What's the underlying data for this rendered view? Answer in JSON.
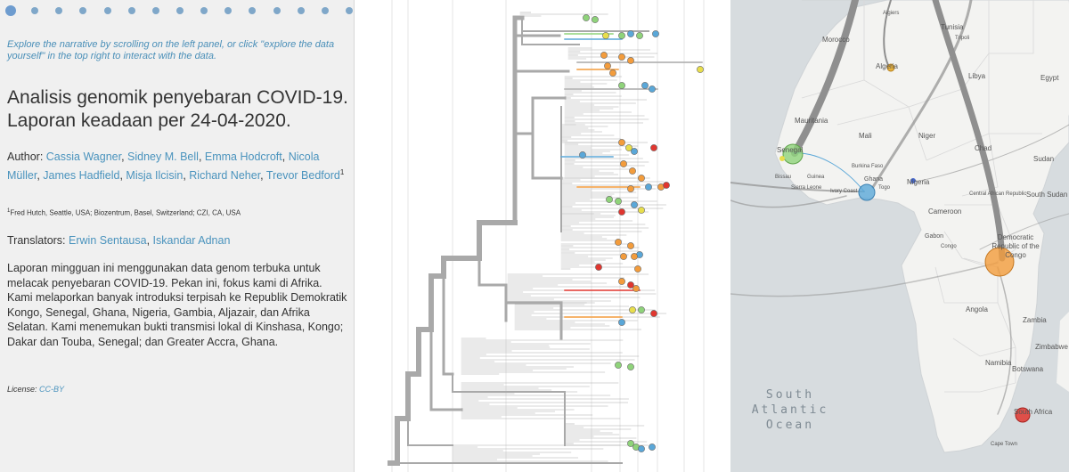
{
  "narrative": {
    "slide_count": 15,
    "active_slide": 0,
    "hint": "Explore the narrative by scrolling on the left panel, or click \"explore the data yourself\" in the top right to interact with the data.",
    "title": "Analisis genomik penyebaran COVID-19. Laporan keadaan per 24-04-2020.",
    "author_label": "Author: ",
    "authors": [
      "Cassia Wagner",
      "Sidney M. Bell",
      "Emma Hodcroft",
      "Nicola Müller",
      "James Hadfield",
      "Misja Ilcisin",
      "Richard Neher",
      "Trevor Bedford"
    ],
    "author_footnote": "1",
    "affiliation_mark": "1",
    "affiliation": "Fred Hutch, Seattle, USA; Biozentrum, Basel, Switzerland; CZI, CA, USA",
    "translators_label": "Translators: ",
    "translators": [
      "Erwin Sentausa",
      "Iskandar Adnan"
    ],
    "body": "Laporan mingguan ini menggunakan data genom terbuka untuk melacak penyebaran COVID-19. Pekan ini, fokus kami di Afrika. Kami melaporkan banyak introduksi terpisah ke Republik Demokratik Kongo, Senegal, Ghana, Nigeria, Gambia, Aljazair, dan Afrika Selatan. Kami menemukan bukti transmisi lokal di Kinshasa, Kongo; Dakar dan Touba, Senegal; dan Greater Accra, Ghana.",
    "license_label": "License: ",
    "license_link": "CC-BY"
  },
  "colors": {
    "tree_branch": "#a9a9a9",
    "tip_green": "#8fd37a",
    "tip_orange": "#f39c3c",
    "tip_blue": "#5aa7d8",
    "tip_red": "#e0362f",
    "tip_yellow": "#e8de4c",
    "map_land": "#f3f3f1",
    "map_water": "#d7dcdf"
  },
  "map": {
    "countries": [
      "Algeria",
      "Libya",
      "Egypt",
      "Morocco",
      "Tunisia",
      "Tripoli",
      "Algiers",
      "Mauritania",
      "Mali",
      "Niger",
      "Chad",
      "Sudan",
      "Senegal",
      "Bissau",
      "Guinea",
      "Sierra Leone",
      "Ivory Coast",
      "Burkina Faso",
      "Ghana",
      "Togo",
      "Nigeria",
      "Central African Republic",
      "South Sudan",
      "Cameroon",
      "Gabon",
      "Congo",
      "Democratic Republic of the Congo",
      "Angola",
      "Zambia",
      "Zimbabwe",
      "Namibia",
      "Botswana",
      "South Africa",
      "Cape Town"
    ],
    "ocean_label": "South Atlantic Ocean"
  }
}
